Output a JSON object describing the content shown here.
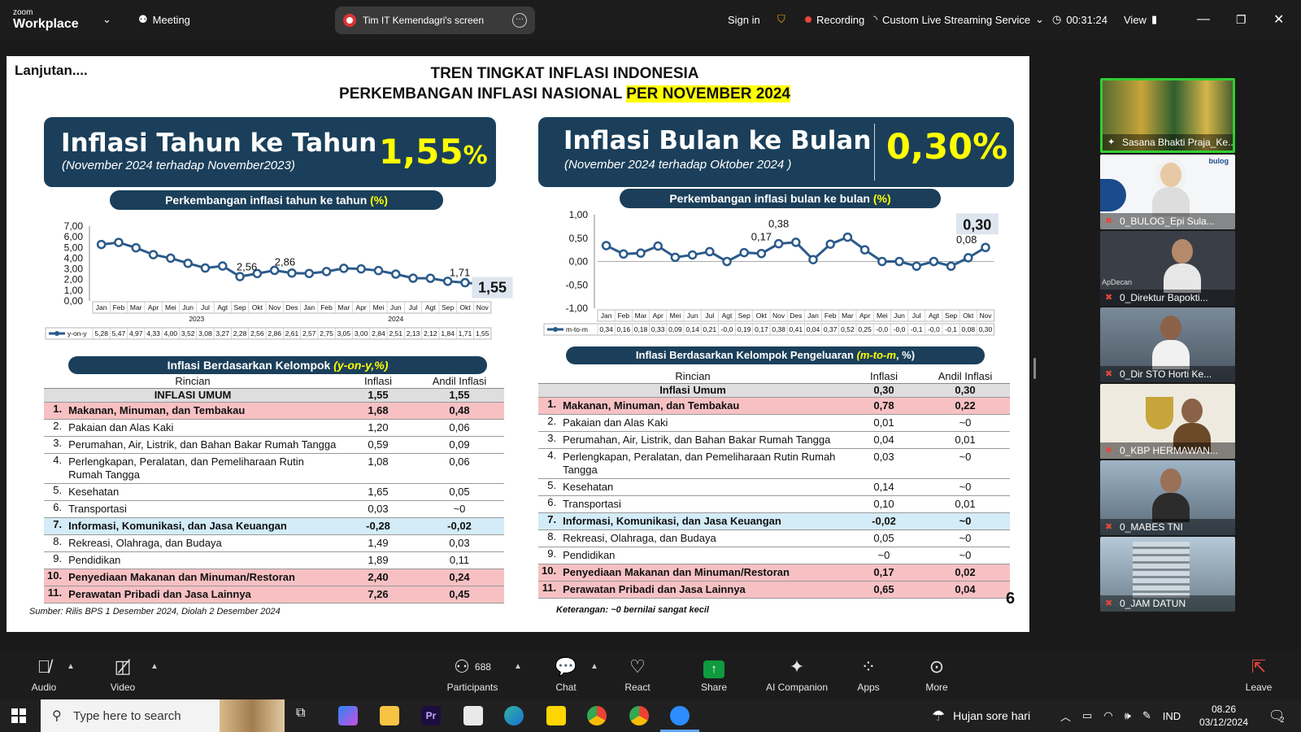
{
  "topbar": {
    "brand_small": "zoom",
    "brand": "Workplace",
    "meeting": "Meeting",
    "screen_share": "Tim IT Kemendagri's screen",
    "sign_in": "Sign in",
    "recording": "Recording",
    "streaming": "Custom Live Streaming Service",
    "timer": "00:31:24",
    "view": "View"
  },
  "slide": {
    "cont": "Lanjutan....",
    "title1": "TREN TINGKAT INFLASI INDONESIA",
    "title2a": "PERKEMBANGAN INFLASI NASIONAL ",
    "title2b": "PER NOVEMBER 2024",
    "yoy_banner": {
      "title": "Inflasi Tahun ke Tahun",
      "sub": "(November 2024 terhadap November2023)",
      "value": "1,55",
      "pct": "%"
    },
    "mtm_banner": {
      "title": "Inflasi Bulan ke Bulan",
      "sub": "(November 2024 terhadap Oktober 2024 )",
      "value": "0,30%"
    },
    "yoy_chart_title": "Perkembangan inflasi tahun ke tahun ",
    "mtm_chart_title": "Perkembangan inflasi bulan ke bulan ",
    "pct_paren": "(%)",
    "yoy_group_title": "Inflasi Berdasarkan Kelompok ",
    "yoy_group_title_y": "(y-on-y,%)",
    "mtm_group_title": "Inflasi Berdasarkan Kelompok Pengeluaran ",
    "mtm_group_title_y": "(m-to-m",
    "mtm_group_title_end": ", %)",
    "source": "Sumber: Rilis BPS 1 Desember 2024, Diolah 2 Desember 2024",
    "note": "Keterangan: ~0 bernilai sangat kecil",
    "page": "6"
  },
  "chart_data": [
    {
      "type": "line",
      "series": [
        {
          "name": "y-on-y",
          "values": [
            5.28,
            5.47,
            4.97,
            4.33,
            4.0,
            3.52,
            3.08,
            3.27,
            2.28,
            2.56,
            2.86,
            2.61,
            2.57,
            2.75,
            3.05,
            3.0,
            2.84,
            2.51,
            2.13,
            2.12,
            1.84,
            1.71,
            1.55
          ]
        }
      ],
      "x": [
        "Jan",
        "Feb",
        "Mar",
        "Apr",
        "Mei",
        "Jun",
        "Jul",
        "Agt",
        "Sep",
        "Okt",
        "Nov",
        "Des",
        "Jan",
        "Feb",
        "Mar",
        "Apr",
        "Mei",
        "Jun",
        "Jul",
        "Agt",
        "Sep",
        "Okt",
        "Nov"
      ],
      "years": [
        "2023",
        "2024"
      ],
      "table_values": [
        "5,28",
        "5,47",
        "4,97",
        "4,33",
        "4,00",
        "3,52",
        "3,08",
        "3,27",
        "2,28",
        "2,56",
        "2,86",
        "2,61",
        "2,57",
        "2,75",
        "3,05",
        "3,00",
        "2,84",
        "2,51",
        "2,13",
        "2,12",
        "1,84",
        "1,71",
        "1,55"
      ],
      "yticks": [
        "7,00",
        "6,00",
        "5,00",
        "4,00",
        "3,00",
        "2,00",
        "1,00",
        "0,00"
      ],
      "ylim": [
        0,
        7
      ],
      "annotations": {
        "sep": "2,56",
        "nov": "2,86",
        "okt": "1,71",
        "last": "1,55"
      },
      "legend": "y-on-y"
    },
    {
      "type": "line",
      "series": [
        {
          "name": "m-to-m",
          "values": [
            0.34,
            0.16,
            0.18,
            0.33,
            0.09,
            0.14,
            0.21,
            -0.0,
            0.19,
            0.17,
            0.38,
            0.41,
            0.04,
            0.37,
            0.52,
            0.25,
            -0.0,
            -0.0,
            -0.1,
            -0.0,
            -0.1,
            0.08,
            0.3
          ]
        }
      ],
      "x": [
        "Jan",
        "Feb",
        "Mar",
        "Apr",
        "Mei",
        "Jun",
        "Jul",
        "Agt",
        "Sep",
        "Okt",
        "Nov",
        "Des",
        "Jan",
        "Feb",
        "Mar",
        "Apr",
        "Mei",
        "Jun",
        "Jul",
        "Agt",
        "Sep",
        "Okt",
        "Nov"
      ],
      "table_values": [
        "0,34",
        "0,16",
        "0,18",
        "0,33",
        "0,09",
        "0,14",
        "0,21",
        "-0,0",
        "0,19",
        "0,17",
        "0,38",
        "0,41",
        "0,04",
        "0,37",
        "0,52",
        "0,25",
        "-0,0",
        "-0,0",
        "-0,1",
        "-0,0",
        "-0,1",
        "0,08",
        "0,30"
      ],
      "yticks": [
        "1,00",
        "0,50",
        "0,00",
        "-0,50",
        "-1,00"
      ],
      "ylim": [
        -1,
        1
      ],
      "annotations": {
        "okt": "0,17",
        "nov": "0,38",
        "okt24": "0,08",
        "last": "0,30"
      },
      "legend": "m-to-m"
    },
    {
      "type": "table",
      "headers": [
        "Rincian",
        "Inflasi",
        "Andil Inflasi"
      ],
      "rows": [
        [
          "",
          "INFLASI UMUM",
          "1,55",
          "1,55",
          "gen"
        ],
        [
          "1.",
          "Makanan, Minuman, dan Tembakau",
          "1,68",
          "0,48",
          "pink"
        ],
        [
          "2.",
          "Pakaian dan Alas Kaki",
          "1,20",
          "0,06",
          ""
        ],
        [
          "3.",
          "Perumahan, Air, Listrik, dan Bahan Bakar Rumah Tangga",
          "0,59",
          "0,09",
          ""
        ],
        [
          "4.",
          "Perlengkapan, Peralatan, dan Pemeliharaan Rutin Rumah Tangga",
          "1,08",
          "0,06",
          ""
        ],
        [
          "5.",
          "Kesehatan",
          "1,65",
          "0,05",
          ""
        ],
        [
          "6.",
          "Transportasi",
          "0,03",
          "~0",
          ""
        ],
        [
          "7.",
          "Informasi, Komunikasi, dan Jasa Keuangan",
          "-0,28",
          "-0,02",
          "blue"
        ],
        [
          "8.",
          "Rekreasi, Olahraga, dan Budaya",
          "1,49",
          "0,03",
          ""
        ],
        [
          "9.",
          "Pendidikan",
          "1,89",
          "0,11",
          ""
        ],
        [
          "10.",
          "Penyediaan Makanan dan Minuman/Restoran",
          "2,40",
          "0,24",
          "pink"
        ],
        [
          "11.",
          "Perawatan Pribadi dan Jasa Lainnya",
          "7,26",
          "0,45",
          "pink"
        ]
      ]
    },
    {
      "type": "table",
      "headers": [
        "Rincian",
        "Inflasi",
        "Andil Inflasi"
      ],
      "rows": [
        [
          "",
          "Inflasi Umum",
          "0,30",
          "0,30",
          "gen"
        ],
        [
          "1.",
          "Makanan, Minuman, dan Tembakau",
          "0,78",
          "0,22",
          "pink"
        ],
        [
          "2.",
          "Pakaian dan Alas Kaki",
          "0,01",
          "~0",
          ""
        ],
        [
          "3.",
          "Perumahan, Air, Listrik, dan Bahan Bakar Rumah Tangga",
          "0,04",
          "0,01",
          ""
        ],
        [
          "4.",
          "Perlengkapan, Peralatan, dan Pemeliharaan Rutin Rumah Tangga",
          "0,03",
          "~0",
          ""
        ],
        [
          "5.",
          "Kesehatan",
          "0,14",
          "~0",
          ""
        ],
        [
          "6.",
          "Transportasi",
          "0,10",
          "0,01",
          ""
        ],
        [
          "7.",
          "Informasi, Komunikasi, dan Jasa Keuangan",
          "-0,02",
          "~0",
          "blue"
        ],
        [
          "8.",
          "Rekreasi, Olahraga, dan Budaya",
          "0,05",
          "~0",
          ""
        ],
        [
          "9.",
          "Pendidikan",
          "~0",
          "~0",
          ""
        ],
        [
          "10.",
          "Penyediaan Makanan dan Minuman/Restoran",
          "0,17",
          "0,02",
          "pink"
        ],
        [
          "11.",
          "Perawatan Pribadi dan Jasa Lainnya",
          "0,65",
          "0,04",
          "pink"
        ]
      ]
    }
  ],
  "participants": [
    "Sasana Bhakti Praja_Ke...",
    "0_BULOG_Epi Sula...",
    "0_Direktur Bapokti...",
    "0_Dir STO Horti Ke...",
    "0_KBP HERMAWAN...",
    "0_MABES TNI",
    "0_JAM DATUN"
  ],
  "tile_texts": {
    "bulog": "bulog",
    "apdecaz": "ApDecan"
  },
  "bottombar": {
    "audio": "Audio",
    "video": "Video",
    "participants": "Participants",
    "participants_count": "688",
    "chat": "Chat",
    "react": "React",
    "share": "Share",
    "ai": "AI Companion",
    "apps": "Apps",
    "more": "More",
    "leave": "Leave"
  },
  "taskbar": {
    "search": "Type here to search",
    "weather": "Hujan sore hari",
    "lang": "IND",
    "time": "08.26",
    "date": "03/12/2024",
    "notif": "2"
  },
  "colors": {
    "navy": "#1b3f5a",
    "yellow": "#ffff00",
    "pink": "#f7c1c3",
    "blue": "#d3ecf7",
    "line": "#2b5a8a"
  }
}
